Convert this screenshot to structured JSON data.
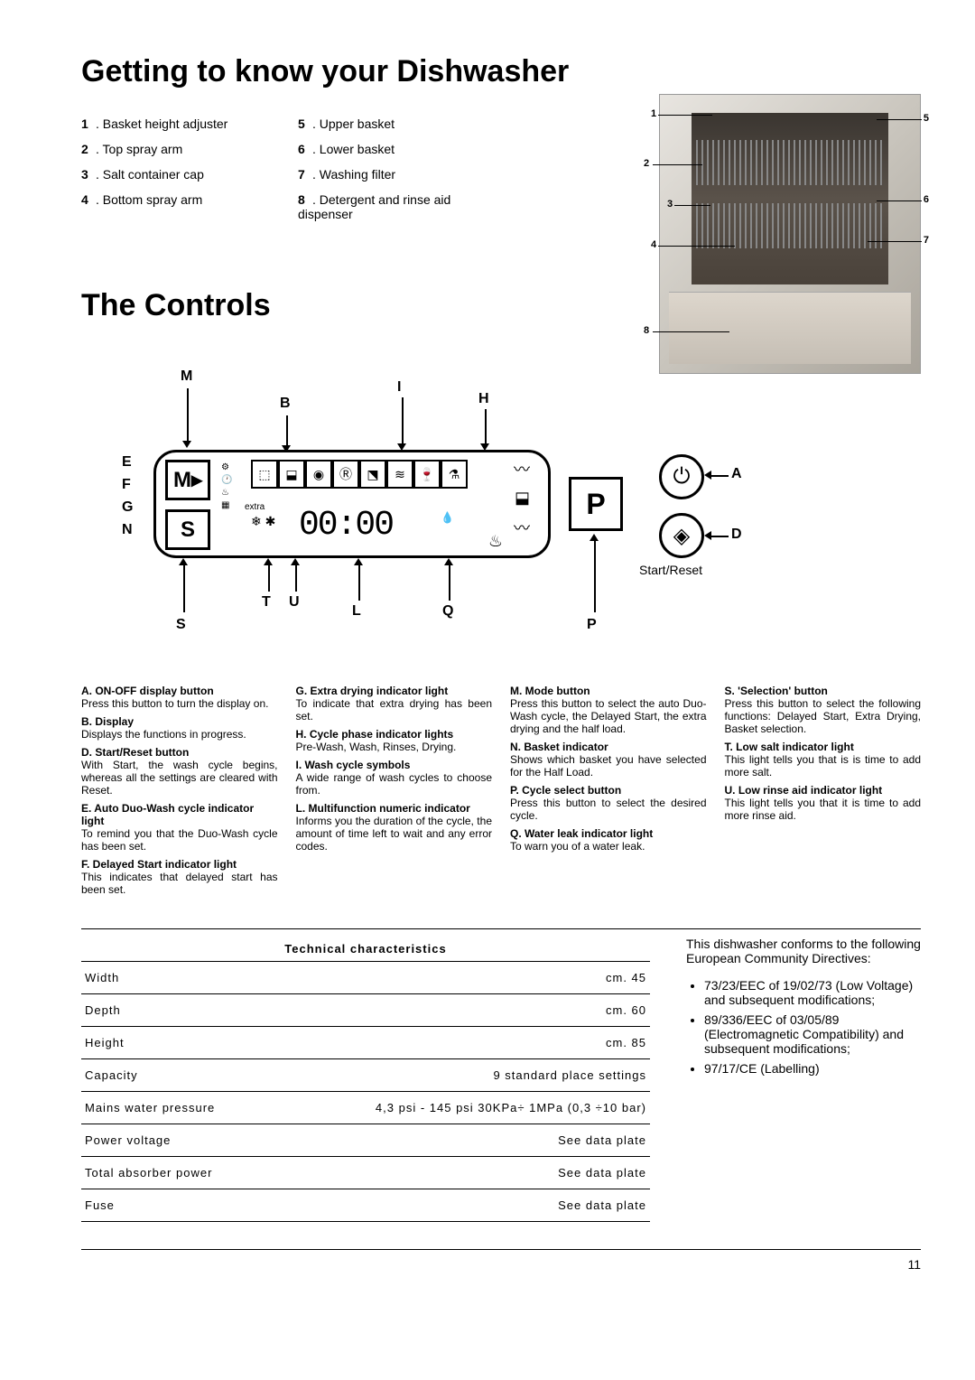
{
  "title1": "Getting to know your Dishwasher",
  "title2": "The Controls",
  "parts_left": [
    {
      "n": "1",
      "t": "Basket height adjuster"
    },
    {
      "n": "2",
      "t": "Top spray arm"
    },
    {
      "n": "3",
      "t": "Salt container cap"
    },
    {
      "n": "4",
      "t": "Bottom spray arm"
    }
  ],
  "parts_right": [
    {
      "n": "5",
      "t": "Upper basket"
    },
    {
      "n": "6",
      "t": "Lower basket"
    },
    {
      "n": "7",
      "t": "Washing filter"
    },
    {
      "n": "8",
      "t": "Detergent and rinse aid dispenser"
    }
  ],
  "diagram_callouts": [
    "1",
    "2",
    "3",
    "4",
    "5",
    "6",
    "7",
    "8"
  ],
  "panel": {
    "lbl_M": "M",
    "lbl_I": "I",
    "lbl_H": "H",
    "lbl_B": "B",
    "lbl_E": "E",
    "lbl_F": "F",
    "lbl_G": "G",
    "lbl_N": "N",
    "lbl_A": "A",
    "lbl_D": "D",
    "lbl_S": "S",
    "lbl_T": "T",
    "lbl_U": "U",
    "lbl_L": "L",
    "lbl_Q": "Q",
    "lbl_P": "P",
    "btn_M": "M▸",
    "btn_S": "S",
    "btn_P": "P",
    "display": "00:00",
    "start_reset": "Start/Reset",
    "power_icon": "⏻",
    "diamond_icon": "◈"
  },
  "controls": {
    "col1": [
      {
        "k": "A.",
        "l": "ON-OFF display button",
        "d": "Press this button to turn the display on."
      },
      {
        "k": "B.",
        "l": "Display",
        "d": "Displays the functions in progress."
      },
      {
        "k": "D.",
        "l": "Start/Reset button",
        "d": "With Start, the wash cycle begins, whereas all the settings are cleared with Reset."
      },
      {
        "k": "E.",
        "l": "Auto Duo-Wash cycle indicator light",
        "d": "To remind you that the Duo-Wash cycle has been set."
      },
      {
        "k": "F.",
        "l": "Delayed Start  indicator light",
        "d": "This indicates that delayed start has been set."
      }
    ],
    "col2": [
      {
        "k": "G.",
        "l": "Extra drying indicator light",
        "d": "To indicate that extra drying has been set."
      },
      {
        "k": "H.",
        "l": "Cycle phase indicator lights",
        "d": "Pre-Wash, Wash, Rinses, Drying."
      },
      {
        "k": "I.",
        "l": "Wash cycle symbols",
        "d": "A wide range of wash cycles to choose from."
      },
      {
        "k": "L.",
        "l": "Multifunction numeric indicator",
        "d": "Informs you the duration of the cycle, the amount of time left to wait and any error codes."
      }
    ],
    "col3": [
      {
        "k": "M.",
        "l": "Mode button",
        "d": "Press this button to select the auto Duo-Wash cycle, the Delayed Start, the extra drying and the half load."
      },
      {
        "k": "N.",
        "l": "Basket indicator",
        "d": "Shows which basket you have selected for the Half Load."
      },
      {
        "k": "P.",
        "l": "Cycle select button",
        "d": "Press this button to select the desired cycle."
      },
      {
        "k": "Q.",
        "l": "Water leak indicator light",
        "d": "To warn you of a water leak."
      }
    ],
    "col4": [
      {
        "k": "S.",
        "l": "'Selection' button",
        "d": "Press this button to select the following functions: Delayed Start, Extra Drying, Basket selection."
      },
      {
        "k": "T.",
        "l": "Low salt indicator light",
        "d": "This light tells you that is is time to add more salt."
      },
      {
        "k": "U.",
        "l": "Low rinse aid indicator light",
        "d": "This light tells you that it is time to add more rinse aid."
      }
    ]
  },
  "tech": {
    "header": "Technical characteristics",
    "rows": [
      {
        "l": "Width",
        "v": "cm. 45"
      },
      {
        "l": "Depth",
        "v": "cm. 60"
      },
      {
        "l": "Height",
        "v": "cm. 85"
      },
      {
        "l": "Capacity",
        "v": "9 standard place settings"
      },
      {
        "l": "Mains water pressure",
        "v": "4,3 psi - 145 psi  30KPa÷ 1MPa  (0,3 ÷10 bar)"
      },
      {
        "l": "Power voltage",
        "v": "See data plate"
      },
      {
        "l": "Total absorber power",
        "v": "See data plate"
      },
      {
        "l": "Fuse",
        "v": "See data plate"
      }
    ]
  },
  "directives": {
    "intro": "This dishwasher conforms to the following European Community Directives:",
    "items": [
      "73/23/EEC of 19/02/73 (Low Voltage) and subsequent modifications;",
      "89/336/EEC of 03/05/89 (Electromagnetic Compatibility) and subsequent modifications;",
      "97/17/CE (Labelling)"
    ]
  },
  "page_number": "11",
  "colors": {
    "bg": "#ffffff",
    "text": "#000000"
  }
}
